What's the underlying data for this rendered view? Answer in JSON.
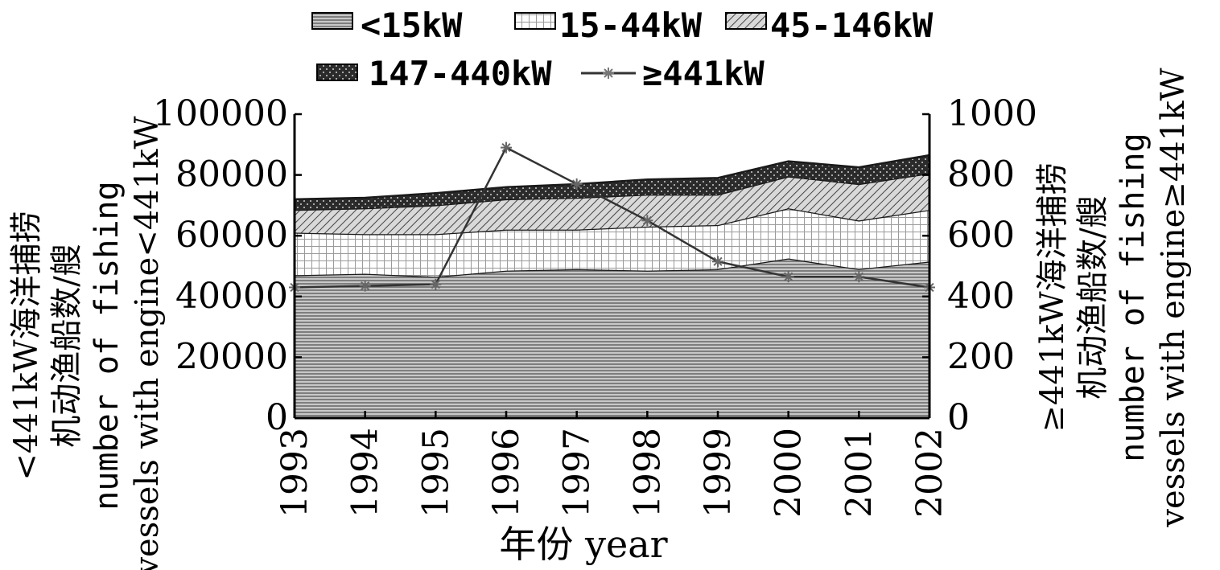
{
  "chart_data": {
    "type": "area",
    "stacked": true,
    "categories": [
      "1993",
      "1994",
      "1995",
      "1996",
      "1997",
      "1998",
      "1999",
      "2000",
      "2001",
      "2002"
    ],
    "xlabel": "年份 year",
    "ylabel_left": [
      "<441kW海洋捕捞",
      "机动渔船数/艘",
      "number of fishing",
      "vessels with engine<441kW"
    ],
    "ylabel_right": [
      "≥441kW海洋捕捞",
      "机动渔船数/艘",
      "number of fishing",
      "vessels with engine≥441kW"
    ],
    "ylim_left": [
      0,
      100000
    ],
    "ylim_right": [
      0,
      1000
    ],
    "yticks_left": [
      "0",
      "20000",
      "40000",
      "60000",
      "80000",
      "100000"
    ],
    "yticks_right": [
      "0",
      "200",
      "400",
      "600",
      "800",
      "1000"
    ],
    "legend_position": "top",
    "series": [
      {
        "name": "<15kW",
        "axis": "left",
        "kind": "area",
        "pattern": "hstripe",
        "values": [
          47000,
          47500,
          46500,
          48500,
          49000,
          48500,
          49000,
          52500,
          49000,
          51500
        ]
      },
      {
        "name": "15-44kW",
        "axis": "left",
        "kind": "area",
        "pattern": "grid",
        "values": [
          14000,
          13000,
          14000,
          13500,
          13000,
          14500,
          14500,
          16500,
          16000,
          17000
        ]
      },
      {
        "name": "45-146kW",
        "axis": "left",
        "kind": "area",
        "pattern": "diag",
        "values": [
          7500,
          8500,
          9500,
          10000,
          10500,
          10500,
          10000,
          10500,
          12000,
          12000
        ]
      },
      {
        "name": "147-440kW",
        "axis": "left",
        "kind": "area",
        "pattern": "dots",
        "values": [
          3500,
          3500,
          4000,
          4000,
          4500,
          5000,
          5500,
          5000,
          5500,
          6000
        ]
      },
      {
        "name": "≥441kW",
        "axis": "right",
        "kind": "line",
        "values": [
          430,
          435,
          440,
          890,
          770,
          650,
          515,
          465,
          465,
          430
        ]
      }
    ]
  }
}
